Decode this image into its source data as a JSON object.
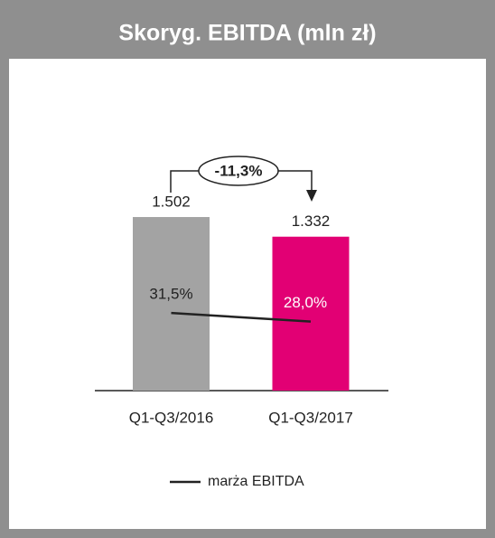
{
  "chart_data": {
    "type": "bar",
    "title": "Skoryg. EBITDA (mln zł)",
    "categories": [
      "Q1-Q3/2016",
      "Q1-Q3/2017"
    ],
    "ylim": [
      0,
      1600
    ],
    "y2lim": [
      0,
      75
    ],
    "series": [
      {
        "name": "Skoryg. EBITDA",
        "type": "bar",
        "colors": [
          "#a3a3a3",
          "#e20074"
        ],
        "values": [
          1502,
          1332
        ],
        "value_labels": [
          "1.502",
          "1.332"
        ]
      },
      {
        "name": "marża EBITDA",
        "type": "line",
        "axis": "y2",
        "color": "#222222",
        "values": [
          31.5,
          28.0
        ],
        "value_labels": [
          "31,5%",
          "28,0%"
        ]
      }
    ],
    "annotations": [
      "-11,3%"
    ]
  }
}
